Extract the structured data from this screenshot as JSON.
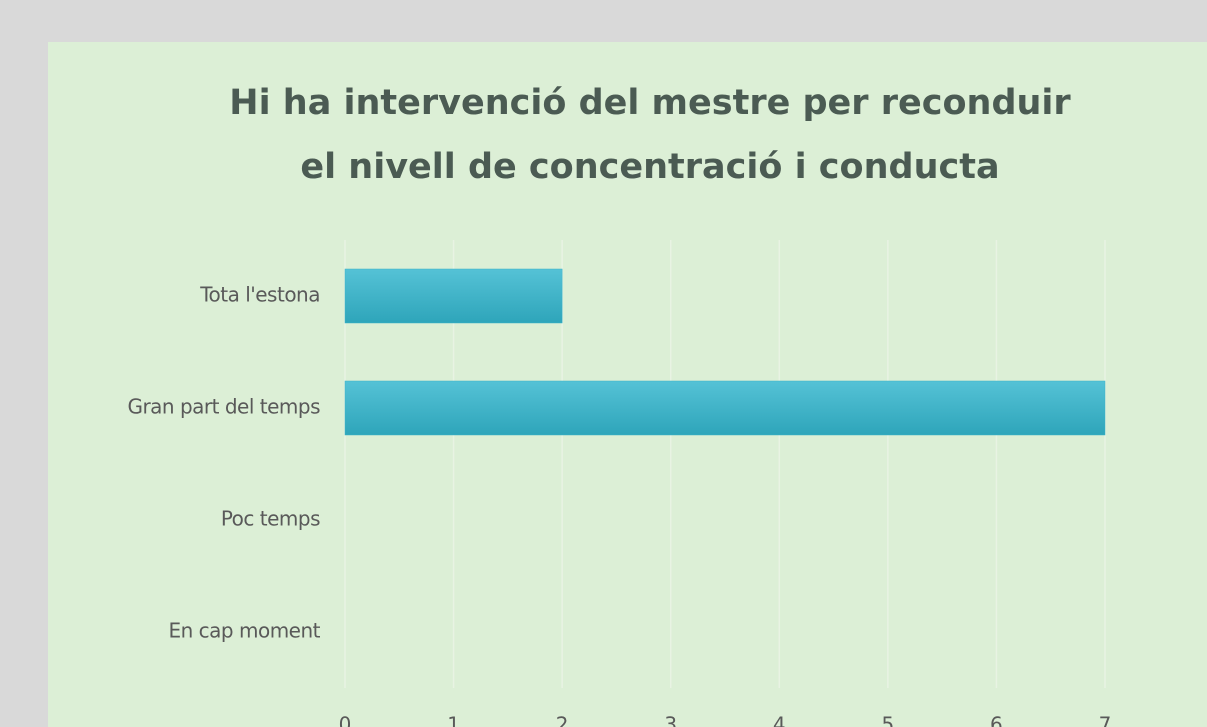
{
  "chart_data": {
    "type": "bar",
    "orientation": "horizontal",
    "title": [
      "Hi ha intervenció del mestre per reconduir",
      "el nivell de concentració i conducta"
    ],
    "categories": [
      "Tota l'estona",
      "Gran part del temps",
      "Poc temps",
      "En cap moment"
    ],
    "values": [
      2,
      7,
      0,
      0
    ],
    "color": "#3db3c8",
    "xlim": [
      0,
      7
    ],
    "xticks": [
      0,
      1,
      2,
      3,
      4,
      5,
      6,
      7
    ],
    "grid": true
  }
}
